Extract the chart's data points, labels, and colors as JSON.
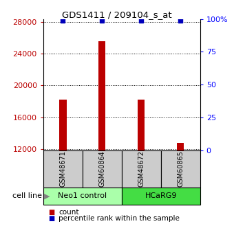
{
  "title": "GDS1411 / 209104_s_at",
  "samples": [
    "GSM48671",
    "GSM60864",
    "GSM48672",
    "GSM60865"
  ],
  "counts": [
    18200,
    25600,
    18200,
    12800
  ],
  "percentiles": [
    100,
    100,
    100,
    100
  ],
  "groups": [
    {
      "label": "Neo1 control",
      "color": "#aaffaa"
    },
    {
      "label": "HCaRG9",
      "color": "#44dd44"
    }
  ],
  "ylim_left": [
    11800,
    28400
  ],
  "ylim_right": [
    0,
    100
  ],
  "yticks_left": [
    12000,
    16000,
    20000,
    24000,
    28000
  ],
  "yticks_right": [
    0,
    25,
    50,
    75,
    100
  ],
  "ytick_labels_right": [
    "0",
    "25",
    "50",
    "75",
    "100%"
  ],
  "bar_color": "#bb0000",
  "dot_color": "#0000bb",
  "bar_width": 0.18,
  "label_area_color": "#cccccc",
  "legend_count_color": "#bb0000",
  "legend_pct_color": "#0000bb"
}
